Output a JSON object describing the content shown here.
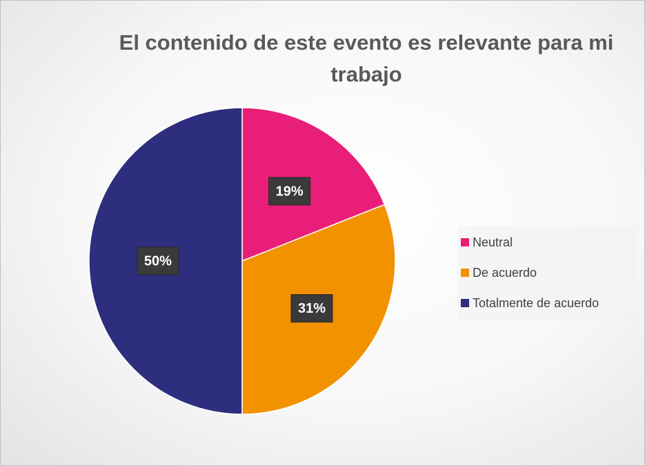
{
  "chart_data": {
    "type": "pie",
    "title": "El contenido de este evento es relevante para mi trabajo",
    "categories": [
      "Neutral",
      "De acuerdo",
      "Totalmente de acuerdo"
    ],
    "values": [
      19,
      31,
      50
    ],
    "value_labels": [
      "19%",
      "31%",
      "50%"
    ],
    "colors": [
      "#e91e78",
      "#f39200",
      "#2e2e7e"
    ],
    "legend": "right"
  }
}
